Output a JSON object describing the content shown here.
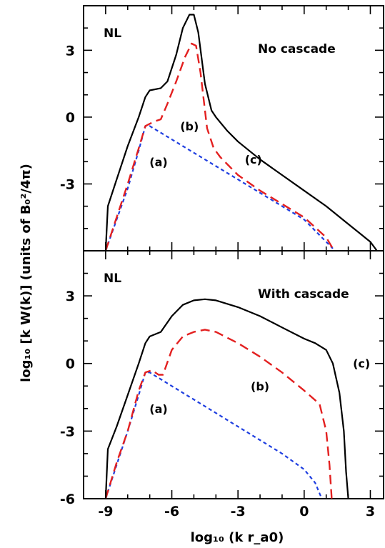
{
  "chart_data": {
    "type": "line",
    "xlabel": "log₁₀ (k r_a0)",
    "ylabel": "log₁₀ [k W(k)] (units of B₀²/4π)",
    "xlim": [
      -10,
      3.6
    ],
    "ylim": [
      -6,
      5
    ],
    "xticks": [
      -9,
      -6,
      -3,
      0,
      3
    ],
    "yticks": [
      -6,
      -3,
      0,
      3
    ],
    "colors": {
      "a": "#1f3fe0",
      "b": "#e32020",
      "c": "#000000"
    },
    "panels": [
      {
        "corner_label": "NL",
        "title": "No cascade",
        "series": [
          {
            "name": "(a)",
            "style": "blue-dotted",
            "x": [
              -9.0,
              -8.5,
              -8.0,
              -7.5,
              -7.2,
              -7.0,
              -6.0,
              -5.0,
              -4.0,
              -3.0,
              -2.0,
              -1.0,
              0.0,
              1.0,
              1.3
            ],
            "y": [
              -6.0,
              -4.6,
              -3.2,
              -1.5,
              -0.4,
              -0.4,
              -1.0,
              -1.6,
              -2.2,
              -2.8,
              -3.4,
              -4.0,
              -4.6,
              -5.6,
              -5.9
            ]
          },
          {
            "name": "(b)",
            "style": "red-dashed",
            "x": [
              -9.0,
              -8.5,
              -8.0,
              -7.5,
              -7.2,
              -6.8,
              -6.5,
              -6.2,
              -5.8,
              -5.4,
              -5.1,
              -4.9,
              -4.7,
              -4.4,
              -4.1,
              -3.8,
              -3.4,
              -3.0,
              -2.0,
              -1.0,
              0.0,
              1.0,
              1.3
            ],
            "y": [
              -6.0,
              -4.5,
              -3.0,
              -1.4,
              -0.4,
              -0.2,
              -0.1,
              0.6,
              1.6,
              2.7,
              3.3,
              3.2,
              2.0,
              -0.5,
              -1.4,
              -1.8,
              -2.2,
              -2.6,
              -3.3,
              -3.9,
              -4.5,
              -5.4,
              -5.9
            ]
          },
          {
            "name": "(c)",
            "style": "black-solid",
            "x": [
              -9.0,
              -8.9,
              -8.5,
              -8.0,
              -7.5,
              -7.2,
              -7.0,
              -6.5,
              -6.2,
              -5.8,
              -5.5,
              -5.2,
              -5.0,
              -4.8,
              -4.5,
              -4.2,
              -4.0,
              -3.5,
              -3.0,
              -2.0,
              -1.0,
              0.0,
              1.0,
              2.0,
              3.0,
              3.3
            ],
            "y": [
              -6.0,
              -4.0,
              -2.8,
              -1.3,
              0.0,
              0.9,
              1.2,
              1.3,
              1.6,
              2.8,
              4.0,
              4.6,
              4.6,
              3.8,
              1.5,
              0.3,
              0.0,
              -0.6,
              -1.1,
              -1.9,
              -2.6,
              -3.3,
              -4.0,
              -4.8,
              -5.6,
              -6.0
            ]
          }
        ],
        "annotations": [
          {
            "text": "(a)",
            "x": -6.6,
            "y": -2.0
          },
          {
            "text": "(b)",
            "x": -5.2,
            "y": -0.4
          },
          {
            "text": "(c)",
            "x": -2.3,
            "y": -1.9
          }
        ]
      },
      {
        "corner_label": "NL",
        "title": "With cascade",
        "series": [
          {
            "name": "(a)",
            "style": "blue-dotted",
            "x": [
              -9.0,
              -8.5,
              -8.0,
              -7.5,
              -7.2,
              -7.0,
              -6.0,
              -5.0,
              -4.0,
              -3.0,
              -2.0,
              -1.0,
              0.0,
              0.5,
              0.8
            ],
            "y": [
              -6.0,
              -4.5,
              -3.0,
              -1.4,
              -0.4,
              -0.4,
              -1.0,
              -1.6,
              -2.2,
              -2.8,
              -3.4,
              -4.0,
              -4.7,
              -5.3,
              -6.0
            ]
          },
          {
            "name": "(b)",
            "style": "red-dashed",
            "x": [
              -9.0,
              -8.5,
              -8.0,
              -7.5,
              -7.2,
              -6.9,
              -6.6,
              -6.4,
              -6.0,
              -5.5,
              -5.0,
              -4.5,
              -4.0,
              -3.0,
              -2.0,
              -1.0,
              0.0,
              0.7,
              1.0,
              1.15,
              1.25
            ],
            "y": [
              -6.0,
              -4.4,
              -3.0,
              -1.2,
              -0.4,
              -0.3,
              -0.5,
              -0.5,
              0.6,
              1.2,
              1.4,
              1.5,
              1.4,
              0.9,
              0.3,
              -0.4,
              -1.2,
              -1.8,
              -3.0,
              -4.5,
              -6.0
            ]
          },
          {
            "name": "(c)",
            "style": "black-solid",
            "x": [
              -9.0,
              -8.9,
              -8.5,
              -8.0,
              -7.5,
              -7.2,
              -7.0,
              -6.5,
              -6.0,
              -5.5,
              -5.0,
              -4.5,
              -4.0,
              -3.0,
              -2.0,
              -1.0,
              0.0,
              0.5,
              1.0,
              1.3,
              1.6,
              1.8,
              1.9,
              2.0
            ],
            "y": [
              -6.0,
              -3.8,
              -2.8,
              -1.4,
              0.0,
              0.9,
              1.2,
              1.4,
              2.1,
              2.6,
              2.8,
              2.85,
              2.8,
              2.5,
              2.1,
              1.6,
              1.1,
              0.9,
              0.6,
              0.0,
              -1.3,
              -3.0,
              -4.8,
              -6.0
            ]
          }
        ],
        "annotations": [
          {
            "text": "(a)",
            "x": -6.6,
            "y": -2.0
          },
          {
            "text": "(b)",
            "x": -2.0,
            "y": -1.0
          },
          {
            "text": "(c)",
            "x": 2.6,
            "y": 0.0
          }
        ]
      }
    ]
  }
}
